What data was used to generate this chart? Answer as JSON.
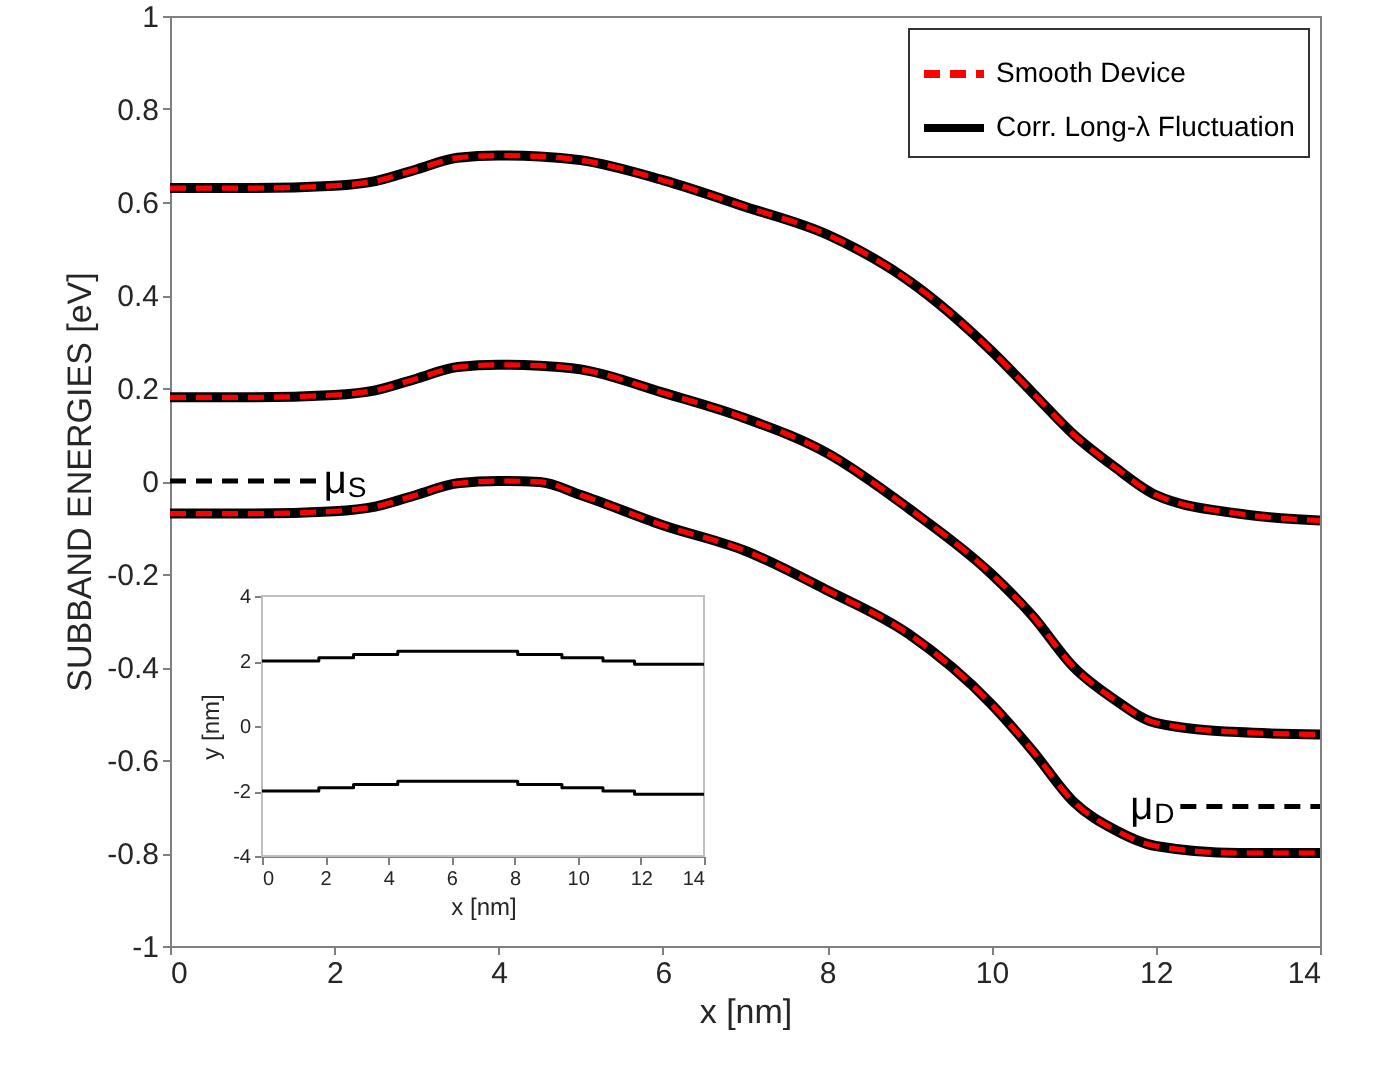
{
  "chart_data": [
    {
      "type": "line",
      "xlabel": "x [nm]",
      "ylabel": "SUBBAND ENERGIES [eV]",
      "x": [
        0,
        1,
        2,
        2.5,
        3,
        3.5,
        4,
        4.5,
        5,
        6,
        7,
        8,
        9,
        10,
        10.5,
        11,
        11.5,
        12,
        13,
        14
      ],
      "series": [
        {
          "name": "Smooth Device",
          "color": "#ff0000",
          "line_style": "dashed",
          "values": [
            0.63,
            0.63,
            0.635,
            0.645,
            0.67,
            0.695,
            0.7,
            0.698,
            0.69,
            0.647,
            0.59,
            0.53,
            0.43,
            0.28,
            0.19,
            0.1,
            0.03,
            -0.03,
            -0.07,
            -0.085
          ]
        },
        {
          "name": "Corr. Long-λ Fluctuation",
          "color": "#000000",
          "line_style": "solid",
          "values": [
            0.63,
            0.63,
            0.635,
            0.645,
            0.67,
            0.695,
            0.7,
            0.698,
            0.69,
            0.647,
            0.59,
            0.53,
            0.43,
            0.28,
            0.19,
            0.1,
            0.03,
            -0.03,
            -0.07,
            -0.085
          ]
        },
        {
          "color": "#ff0000",
          "line_style": "dashed",
          "values": [
            0.18,
            0.18,
            0.185,
            0.195,
            0.22,
            0.245,
            0.25,
            0.248,
            0.24,
            0.19,
            0.135,
            0.06,
            -0.06,
            -0.2,
            -0.29,
            -0.4,
            -0.47,
            -0.52,
            -0.54,
            -0.545
          ]
        },
        {
          "color": "#000000",
          "line_style": "solid",
          "values": [
            0.18,
            0.18,
            0.185,
            0.195,
            0.22,
            0.245,
            0.25,
            0.248,
            0.24,
            0.19,
            0.135,
            0.06,
            -0.06,
            -0.2,
            -0.29,
            -0.4,
            -0.47,
            -0.52,
            -0.54,
            -0.545
          ]
        },
        {
          "color": "#ff0000",
          "line_style": "dashed",
          "values": [
            -0.07,
            -0.07,
            -0.065,
            -0.055,
            -0.03,
            -0.005,
            0,
            -0.002,
            -0.03,
            -0.095,
            -0.15,
            -0.235,
            -0.33,
            -0.48,
            -0.58,
            -0.69,
            -0.75,
            -0.785,
            -0.8,
            -0.8
          ]
        },
        {
          "color": "#000000",
          "line_style": "solid",
          "values": [
            -0.07,
            -0.07,
            -0.065,
            -0.055,
            -0.03,
            -0.005,
            0,
            -0.002,
            -0.03,
            -0.095,
            -0.15,
            -0.235,
            -0.33,
            -0.48,
            -0.58,
            -0.69,
            -0.75,
            -0.785,
            -0.8,
            -0.8
          ]
        },
        {
          "color": "#000000",
          "line_style": "dashed",
          "x": [
            0,
            1.8
          ],
          "values": [
            0,
            0
          ]
        },
        {
          "color": "#000000",
          "line_style": "dashed",
          "x": [
            12.3,
            14
          ],
          "values": [
            -0.7,
            -0.7
          ]
        }
      ],
      "annotations": [
        {
          "text": "μ$_{S}$",
          "x": 1.8,
          "y": 0
        },
        {
          "text": "μ$_{D}$",
          "x": 12.3,
          "y": -0.7
        }
      ],
      "xlim": [
        0,
        14
      ],
      "ylim": [
        -1,
        1
      ],
      "xticks": [
        0,
        2,
        4,
        6,
        8,
        10,
        12,
        14
      ],
      "yticks": [
        -1,
        -0.8,
        -0.6,
        -0.4,
        -0.2,
        0,
        0.2,
        0.4,
        0.6,
        0.8,
        1
      ],
      "grid": false,
      "legend": "top right"
    },
    {
      "type": "step",
      "xlabel": "x [nm]",
      "ylabel": "y [nm]",
      "x": [
        0,
        1.8,
        2.9,
        4.3,
        8.1,
        9.5,
        10.8,
        11.8,
        14
      ],
      "series": [
        {
          "color": "#000000",
          "line_style": "solid",
          "values": [
            2.0,
            2.1,
            2.2,
            2.3,
            2.2,
            2.1,
            2.0,
            1.9,
            1.9
          ]
        },
        {
          "color": "#000000",
          "line_style": "solid",
          "values": [
            -2.0,
            -1.9,
            -1.8,
            -1.7,
            -1.8,
            -1.9,
            -2.0,
            -2.1,
            -2.1
          ]
        }
      ],
      "xlim": [
        0,
        14
      ],
      "ylim": [
        -4,
        4
      ],
      "xticks": [
        0,
        2,
        4,
        6,
        8,
        10,
        12,
        14
      ],
      "yticks": [
        -4,
        -2,
        0,
        2,
        4
      ],
      "grid": false,
      "legend": false
    }
  ]
}
